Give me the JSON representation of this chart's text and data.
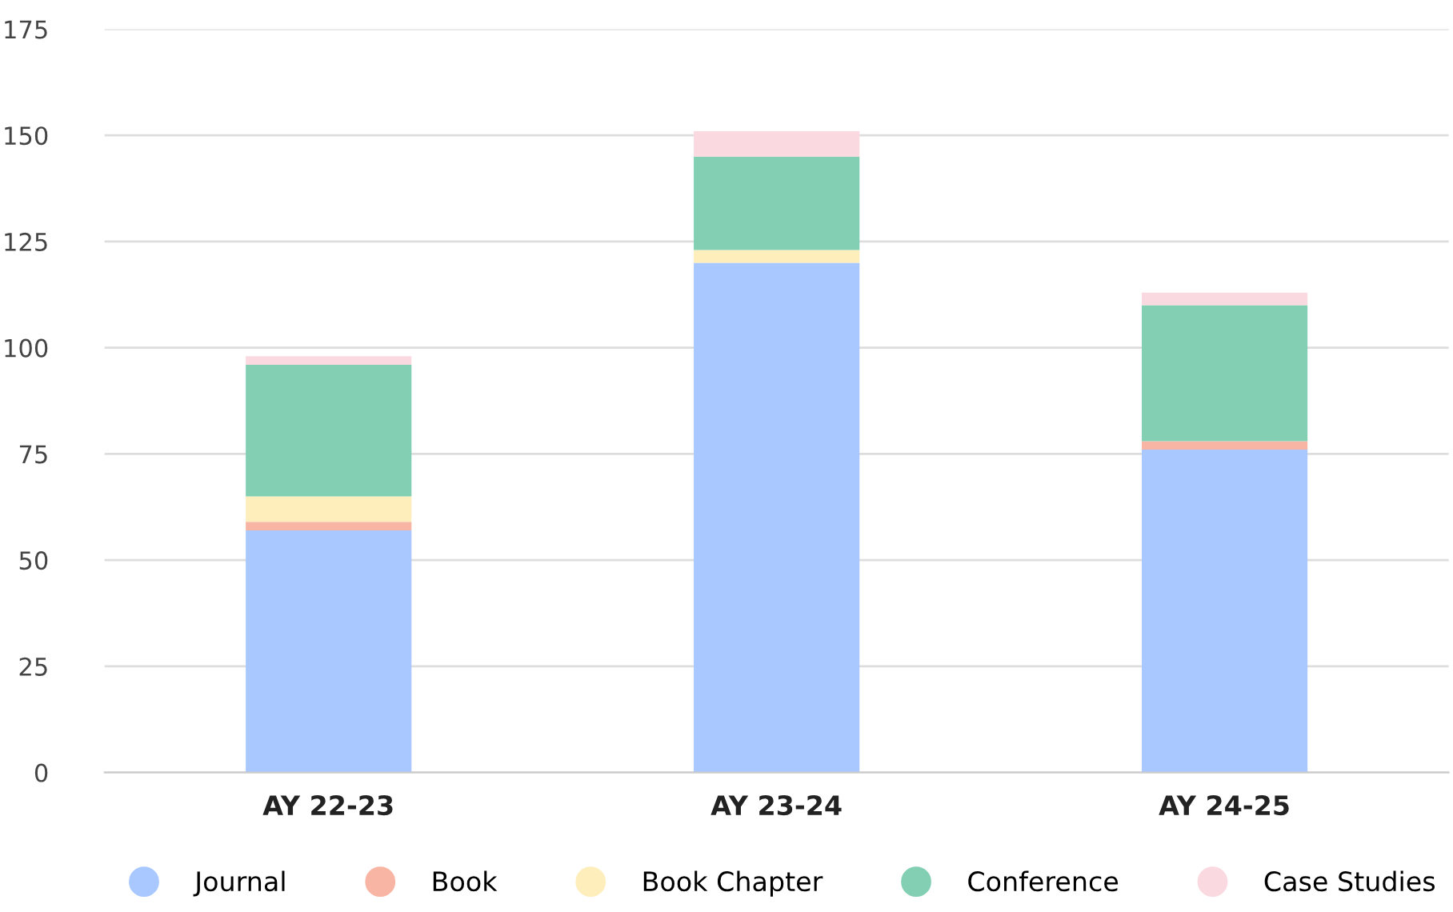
{
  "chart_data": {
    "type": "bar",
    "stacked": true,
    "categories": [
      "AY 22-23",
      "AY 23-24",
      "AY 24-25"
    ],
    "series": [
      {
        "name": "Journal",
        "color": "#a8c8ff",
        "values": [
          57,
          120,
          76
        ]
      },
      {
        "name": "Book",
        "color": "#f9b5a3",
        "values": [
          2,
          0,
          2
        ]
      },
      {
        "name": "Book Chapter",
        "color": "#fdeebc",
        "values": [
          6,
          3,
          0
        ]
      },
      {
        "name": "Conference",
        "color": "#83cfb4",
        "values": [
          31,
          22,
          32
        ]
      },
      {
        "name": "Case Studies",
        "color": "#fbd9e0",
        "values": [
          2,
          6,
          3
        ]
      }
    ],
    "ylim": [
      0,
      175
    ],
    "yticks": [
      0,
      25,
      50,
      75,
      100,
      125,
      150,
      175
    ],
    "grid": "y",
    "legend": "bottom"
  }
}
